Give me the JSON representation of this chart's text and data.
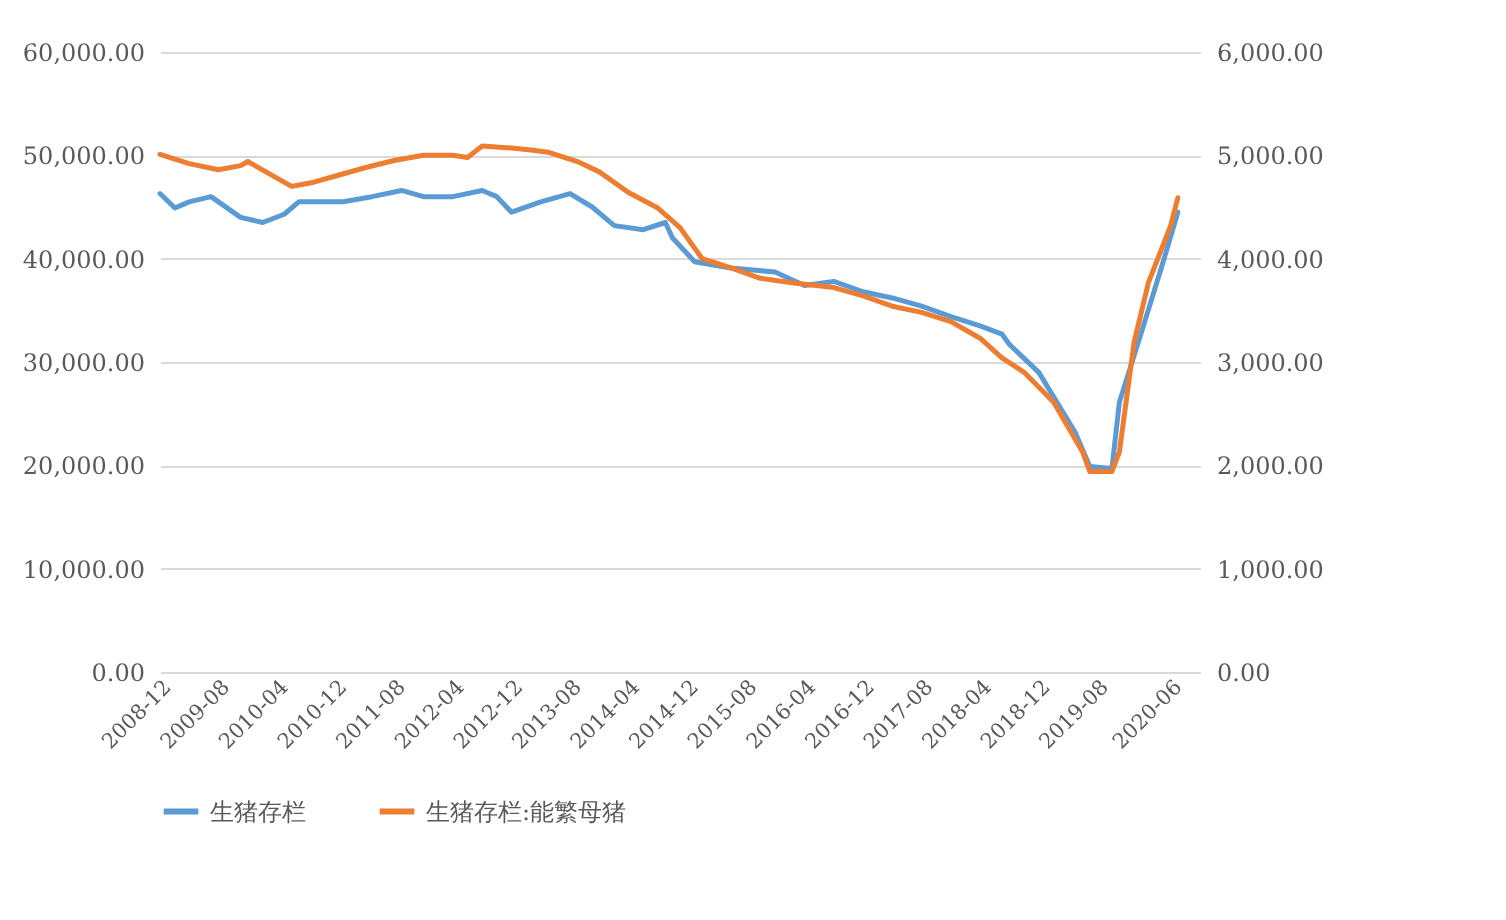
{
  "chart_data": {
    "type": "line",
    "xlim": [
      "2008-12",
      "2020-10"
    ],
    "xticks": [
      "2008-12",
      "2009-08",
      "2010-04",
      "2010-12",
      "2011-08",
      "2012-04",
      "2012-12",
      "2013-08",
      "2014-04",
      "2014-12",
      "2015-08",
      "2016-04",
      "2016-12",
      "2017-08",
      "2018-04",
      "2018-12",
      "2019-08",
      "2020-06"
    ],
    "ylim": [
      0,
      60000
    ],
    "yticks": [
      {
        "value": 0,
        "label": "0.00"
      },
      {
        "value": 10000,
        "label": "10,000.00"
      },
      {
        "value": 20000,
        "label": "20,000.00"
      },
      {
        "value": 30000,
        "label": "30,000.00"
      },
      {
        "value": 40000,
        "label": "40,000.00"
      },
      {
        "value": 50000,
        "label": "50,000.00"
      },
      {
        "value": 60000,
        "label": "60,000.00"
      }
    ],
    "y2lim": [
      0,
      6000
    ],
    "y2ticks": [
      {
        "value": 0,
        "label": "0.00"
      },
      {
        "value": 1000,
        "label": "1,000.00"
      },
      {
        "value": 2000,
        "label": "2,000.00"
      },
      {
        "value": 3000,
        "label": "3,000.00"
      },
      {
        "value": 4000,
        "label": "4,000.00"
      },
      {
        "value": 5000,
        "label": "5,000.00"
      },
      {
        "value": 6000,
        "label": "6,000.00"
      }
    ],
    "grid": "y",
    "legend": "bottom",
    "marker": "none",
    "line_style": "solid",
    "series": [
      {
        "name": "生猪存栏",
        "color": "#5b9bd5",
        "x": [
          "2008-12",
          "2009-02",
          "2009-04",
          "2009-07",
          "2009-11",
          "2010-02",
          "2010-05",
          "2010-07",
          "2011-01",
          "2011-05",
          "2011-09",
          "2011-12",
          "2012-04",
          "2012-08",
          "2012-10",
          "2012-12",
          "2013-04",
          "2013-08",
          "2013-11",
          "2014-02",
          "2014-06",
          "2014-09",
          "2014-10",
          "2015-01",
          "2015-06",
          "2015-12",
          "2016-04",
          "2016-08",
          "2016-12",
          "2017-04",
          "2017-08",
          "2017-12",
          "2018-04",
          "2018-07",
          "2018-08",
          "2018-12",
          "2019-05",
          "2019-07",
          "2019-10",
          "2019-11",
          "2020-02",
          "2020-05",
          "2020-07"
        ],
        "values": [
          46300,
          44900,
          45500,
          46000,
          44000,
          43500,
          44300,
          45500,
          45500,
          46000,
          46600,
          46000,
          46000,
          46600,
          46000,
          44500,
          45500,
          46300,
          45000,
          43200,
          42800,
          43500,
          42000,
          39700,
          39100,
          38700,
          37400,
          37800,
          36800,
          36200,
          35400,
          34400,
          33500,
          32700,
          31700,
          29000,
          23200,
          19900,
          19700,
          26100,
          32900,
          39700,
          44500
        ]
      },
      {
        "name": "生猪存栏:能繁母猪",
        "color": "#ed7d31",
        "axis": "y2",
        "x": [
          "2008-12",
          "2009-04",
          "2009-08",
          "2009-11",
          "2009-12",
          "2010-03",
          "2010-06",
          "2010-09",
          "2010-12",
          "2011-04",
          "2011-08",
          "2011-12",
          "2012-04",
          "2012-06",
          "2012-08",
          "2012-12",
          "2013-03",
          "2013-05",
          "2013-09",
          "2013-12",
          "2014-04",
          "2014-08",
          "2014-11",
          "2015-02",
          "2015-06",
          "2015-10",
          "2016-02",
          "2016-08",
          "2016-12",
          "2017-04",
          "2017-08",
          "2017-12",
          "2018-04",
          "2018-07",
          "2018-10",
          "2019-02",
          "2019-06",
          "2019-07",
          "2019-10",
          "2019-11",
          "2020-01",
          "2020-03",
          "2020-06",
          "2020-07"
        ],
        "values": [
          5010,
          4920,
          4860,
          4900,
          4940,
          4820,
          4700,
          4740,
          4800,
          4880,
          4950,
          5000,
          5000,
          4980,
          5090,
          5070,
          5050,
          5030,
          4940,
          4840,
          4640,
          4490,
          4300,
          4000,
          3910,
          3810,
          3770,
          3720,
          3640,
          3540,
          3480,
          3390,
          3230,
          3040,
          2900,
          2610,
          2130,
          1940,
          1940,
          2130,
          3190,
          3770,
          4320,
          4590
        ]
      }
    ]
  }
}
